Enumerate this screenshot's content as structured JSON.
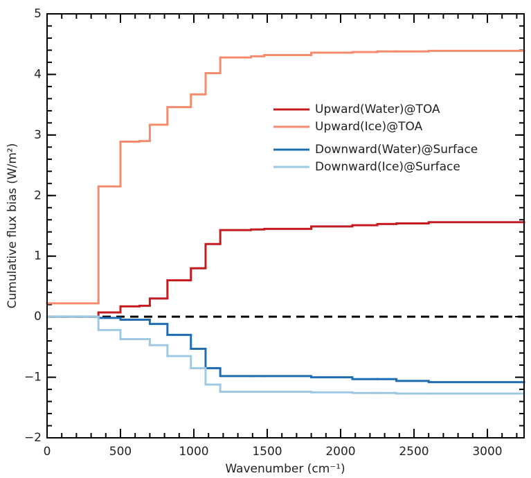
{
  "chart_data": {
    "type": "step",
    "xlabel": "Wavenumber (cm⁻¹)",
    "ylabel": "Cumulative flux bias (W/m²)",
    "x": [
      0,
      350,
      500,
      630,
      700,
      820,
      980,
      1080,
      1180,
      1390,
      1480,
      1800,
      2080,
      2250,
      2380,
      2600
    ],
    "series": [
      {
        "name": "Upward(Water)@TOA",
        "color": "#c41a20",
        "values": [
          0.0,
          0.07,
          0.17,
          0.18,
          0.3,
          0.6,
          0.8,
          1.2,
          1.43,
          1.44,
          1.45,
          1.49,
          1.51,
          1.53,
          1.54,
          1.56
        ]
      },
      {
        "name": "Upward(Ice)@TOA",
        "color": "#f58a6c",
        "values": [
          0.22,
          2.15,
          2.89,
          2.9,
          3.17,
          3.46,
          3.67,
          4.02,
          4.28,
          4.3,
          4.32,
          4.36,
          4.37,
          4.38,
          4.38,
          4.39
        ]
      },
      {
        "name": "Downward(Water)@Surface",
        "color": "#1f6db4",
        "values": [
          0.0,
          -0.02,
          -0.05,
          -0.05,
          -0.12,
          -0.3,
          -0.53,
          -0.85,
          -0.98,
          -0.98,
          -0.98,
          -1.0,
          -1.03,
          -1.03,
          -1.06,
          -1.08
        ]
      },
      {
        "name": "Downward(Ice)@Surface",
        "color": "#9dcae2",
        "values": [
          0.0,
          -0.22,
          -0.37,
          -0.37,
          -0.47,
          -0.65,
          -0.85,
          -1.12,
          -1.24,
          -1.24,
          -1.24,
          -1.25,
          -1.26,
          -1.26,
          -1.27,
          -1.27
        ]
      }
    ],
    "xlim": [
      0,
      3250
    ],
    "ylim": [
      -2,
      5
    ],
    "xticks": [
      0,
      500,
      1000,
      1500,
      2000,
      2500,
      3000
    ],
    "yticks": [
      {
        "value": -2,
        "label": "−2"
      },
      {
        "value": -1,
        "label": "−1"
      },
      0,
      1,
      2,
      3,
      4,
      5
    ],
    "minor_ticks": {
      "x": 100,
      "y": 0.2
    },
    "hline": {
      "value": 0,
      "color": "#000000",
      "dashed": true
    },
    "grid": false,
    "legend": "upper-center"
  }
}
